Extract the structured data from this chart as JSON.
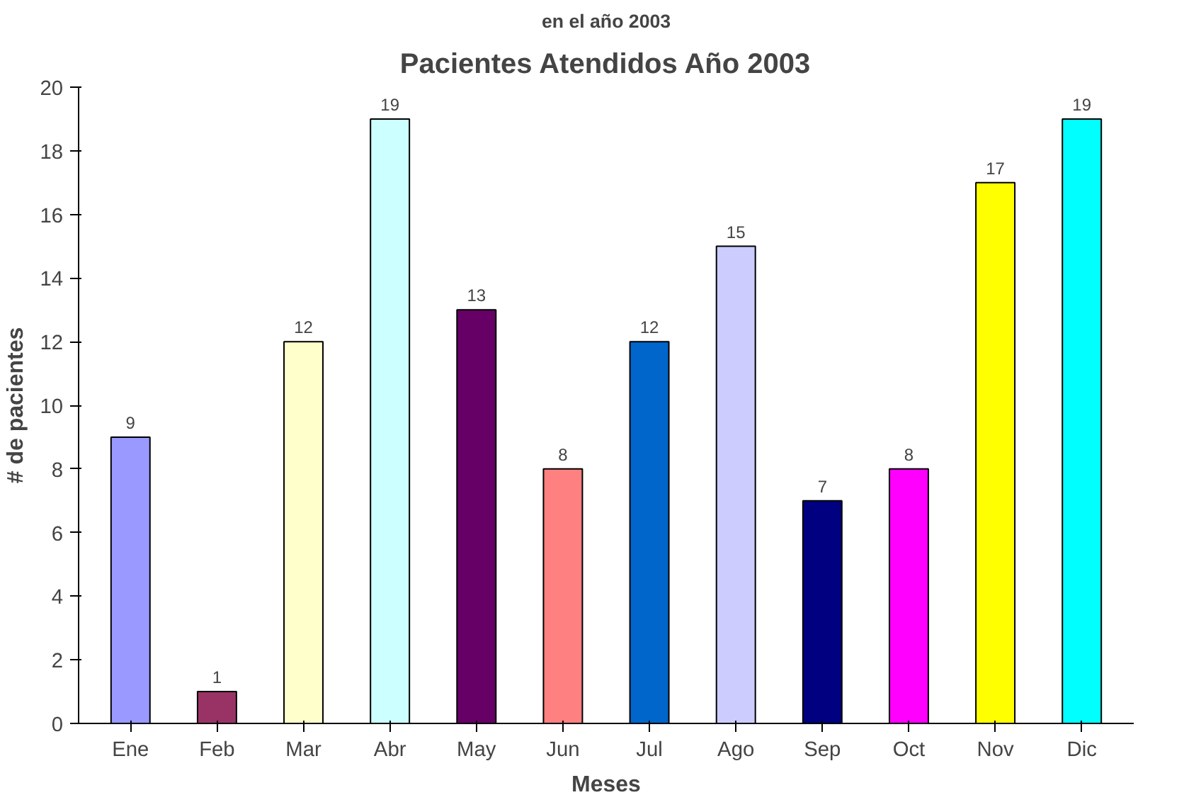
{
  "chart_data": {
    "type": "bar",
    "title": "Pacientes Atendidos Año 2003",
    "annotations": [
      "en el año 2003"
    ],
    "xlabel": "Meses",
    "ylabel": "# de pacientes",
    "categories": [
      "Ene",
      "Feb",
      "Mar",
      "Abr",
      "May",
      "Jun",
      "Jul",
      "Ago",
      "Sep",
      "Oct",
      "Nov",
      "Dic"
    ],
    "values": [
      9,
      1,
      12,
      19,
      13,
      8,
      12,
      15,
      7,
      8,
      17,
      19
    ],
    "colors": [
      "#9999ff",
      "#993366",
      "#ffffcc",
      "#ccffff",
      "#660066",
      "#ff8080",
      "#0066cc",
      "#ccccff",
      "#000080",
      "#ff00ff",
      "#ffff00",
      "#00ffff"
    ],
    "ylim": [
      0,
      20
    ],
    "yticks": [
      0,
      2,
      4,
      6,
      8,
      10,
      12,
      14,
      16,
      18,
      20
    ],
    "data_labels": true,
    "grid": false
  }
}
